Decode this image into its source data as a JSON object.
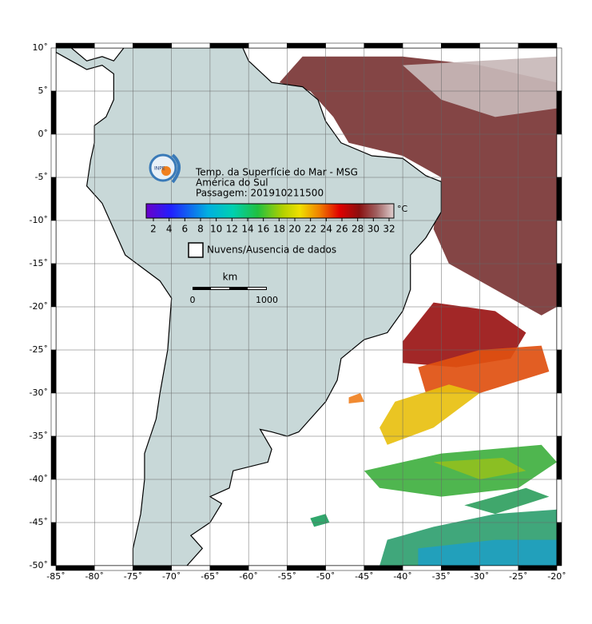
{
  "header": {
    "lines": [
      "Temp. da Superfície do Mar - MSG",
      "América do Sul",
      "Passagem: 201910211500"
    ]
  },
  "colorbar": {
    "unit": "°C",
    "ticks": [
      2,
      4,
      6,
      8,
      10,
      12,
      14,
      16,
      18,
      20,
      22,
      24,
      26,
      28,
      30,
      32
    ]
  },
  "legend": {
    "label": "Nuvens/Ausencia de dados"
  },
  "scale_bar": {
    "unit": "km",
    "labels": [
      "0",
      "1000"
    ]
  },
  "map": {
    "lon_ticks": [
      {
        "value": -85,
        "label": "-85˚"
      },
      {
        "value": -80,
        "label": "-80˚"
      },
      {
        "value": -75,
        "label": "-75˚"
      },
      {
        "value": -70,
        "label": "-70˚"
      },
      {
        "value": -65,
        "label": "-65˚"
      },
      {
        "value": -60,
        "label": "-60˚"
      },
      {
        "value": -55,
        "label": "-55˚"
      },
      {
        "value": -50,
        "label": "-50˚"
      },
      {
        "value": -45,
        "label": "-45˚"
      },
      {
        "value": -40,
        "label": "-40˚"
      },
      {
        "value": -35,
        "label": "-35˚"
      },
      {
        "value": -30,
        "label": "-30˚"
      },
      {
        "value": -25,
        "label": "-25˚"
      },
      {
        "value": -20,
        "label": "-20˚"
      }
    ],
    "lat_ticks": [
      {
        "value": 10,
        "label": "10˚"
      },
      {
        "value": 5,
        "label": "5˚"
      },
      {
        "value": 0,
        "label": "0˚"
      },
      {
        "value": -5,
        "label": "-5˚"
      },
      {
        "value": -10,
        "label": "-10˚"
      },
      {
        "value": -15,
        "label": "-15˚"
      },
      {
        "value": -20,
        "label": "-20˚"
      },
      {
        "value": -25,
        "label": "-25˚"
      },
      {
        "value": -30,
        "label": "-30˚"
      },
      {
        "value": -35,
        "label": "-35˚"
      },
      {
        "value": -40,
        "label": "-40˚"
      },
      {
        "value": -45,
        "label": "-45˚"
      },
      {
        "value": -50,
        "label": "-50˚"
      }
    ]
  }
}
